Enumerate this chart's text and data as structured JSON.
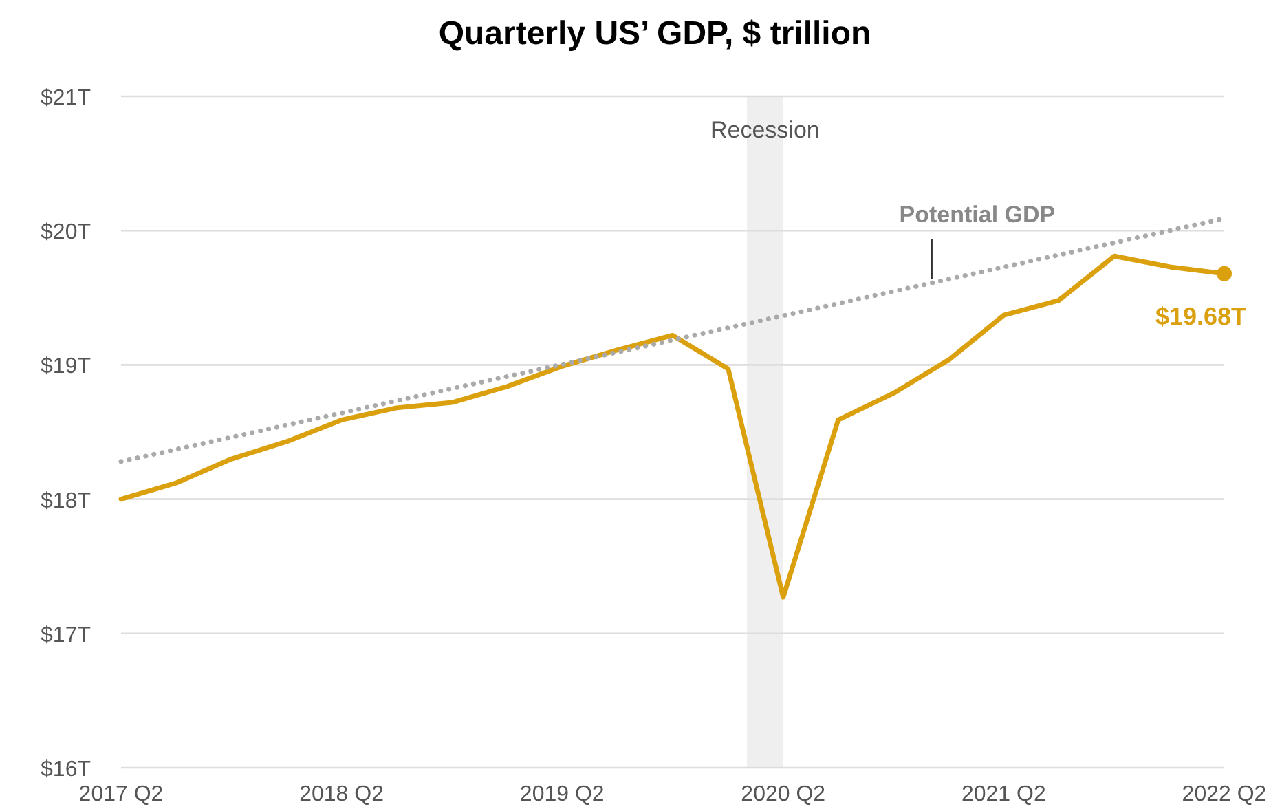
{
  "chart_data": {
    "type": "line",
    "title": "Quarterly US’ GDP, $ trillion",
    "x": [
      "2017-04",
      "2017-07",
      "2017-10",
      "2018-01",
      "2018-04",
      "2018-07",
      "2018-10",
      "2019-01",
      "2019-04",
      "2019-07",
      "2019-10",
      "2020-01",
      "2020-04",
      "2020-07",
      "2020-10",
      "2021-01",
      "2021-04",
      "2021-07",
      "2021-10",
      "2022-01",
      "2022-04"
    ],
    "series": [
      {
        "color": "#daa00d",
        "line_style": "solid",
        "values": [
          18.0,
          18.12,
          18.3,
          18.43,
          18.59,
          18.68,
          18.72,
          18.84,
          18.99,
          19.11,
          19.22,
          18.97,
          17.27,
          18.59,
          18.79,
          19.04,
          19.37,
          19.48,
          19.81,
          19.73,
          19.68
        ],
        "value_labels": [
          null,
          null,
          null,
          null,
          null,
          null,
          null,
          null,
          null,
          null,
          null,
          null,
          null,
          null,
          null,
          null,
          null,
          null,
          null,
          null,
          "$19.68T"
        ]
      },
      {
        "name": "Potential GDP",
        "color": "#aaaaaa",
        "line_style": "dotted",
        "x": [
          "2017-04",
          "2022-04"
        ],
        "values": [
          18.28,
          20.09
        ]
      }
    ],
    "xlim": [
      "2017-04",
      "2022-04"
    ],
    "xticks": [
      {
        "value": "2017-04",
        "label": "2017 Q2"
      },
      {
        "value": "2018-04",
        "label": "2018 Q2"
      },
      {
        "value": "2019-04",
        "label": "2019 Q2"
      },
      {
        "value": "2020-04",
        "label": "2020 Q2"
      },
      {
        "value": "2021-04",
        "label": "2021 Q2"
      },
      {
        "value": "2022-04",
        "label": "2022 Q2"
      }
    ],
    "ylim": [
      16,
      21
    ],
    "yticks": [
      {
        "value": 16,
        "label": "$16T"
      },
      {
        "value": 17,
        "label": "$17T"
      },
      {
        "value": 18,
        "label": "$18T"
      },
      {
        "value": 19,
        "label": "$19T"
      },
      {
        "value": 20,
        "label": "$20T"
      },
      {
        "value": 21,
        "label": "$21T"
      }
    ],
    "grid": "y",
    "marker": "none",
    "bands": [
      {
        "axis": "x",
        "from": "2020-02",
        "to": "2020-04",
        "label": "Recession",
        "color": "#efefef"
      }
    ]
  }
}
